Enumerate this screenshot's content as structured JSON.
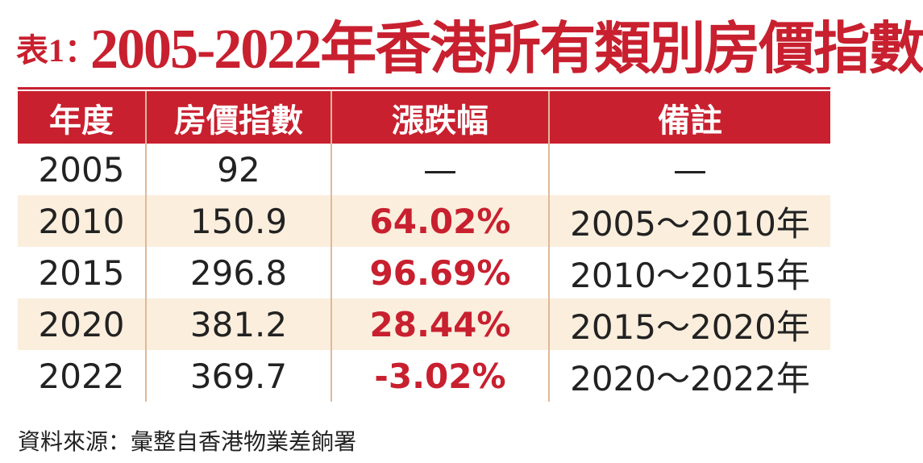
{
  "title": {
    "label": "表1：",
    "text": "2005-2022年香港所有類別房價指數"
  },
  "table": {
    "headers": [
      "年度",
      "房價指數",
      "漲跌幅",
      "備註"
    ],
    "rows": [
      [
        "2005",
        "92",
        "—",
        "—"
      ],
      [
        "2010",
        "150.9",
        "64.02%",
        "2005～2010年"
      ],
      [
        "2015",
        "296.8",
        "96.69%",
        "2010～2015年"
      ],
      [
        "2020",
        "381.2",
        "28.44%",
        "2015～2020年"
      ],
      [
        "2022",
        "369.7",
        "-3.02%",
        "2020～2022年"
      ]
    ]
  },
  "source": "資料來源：彙整自香港物業差餉署"
}
